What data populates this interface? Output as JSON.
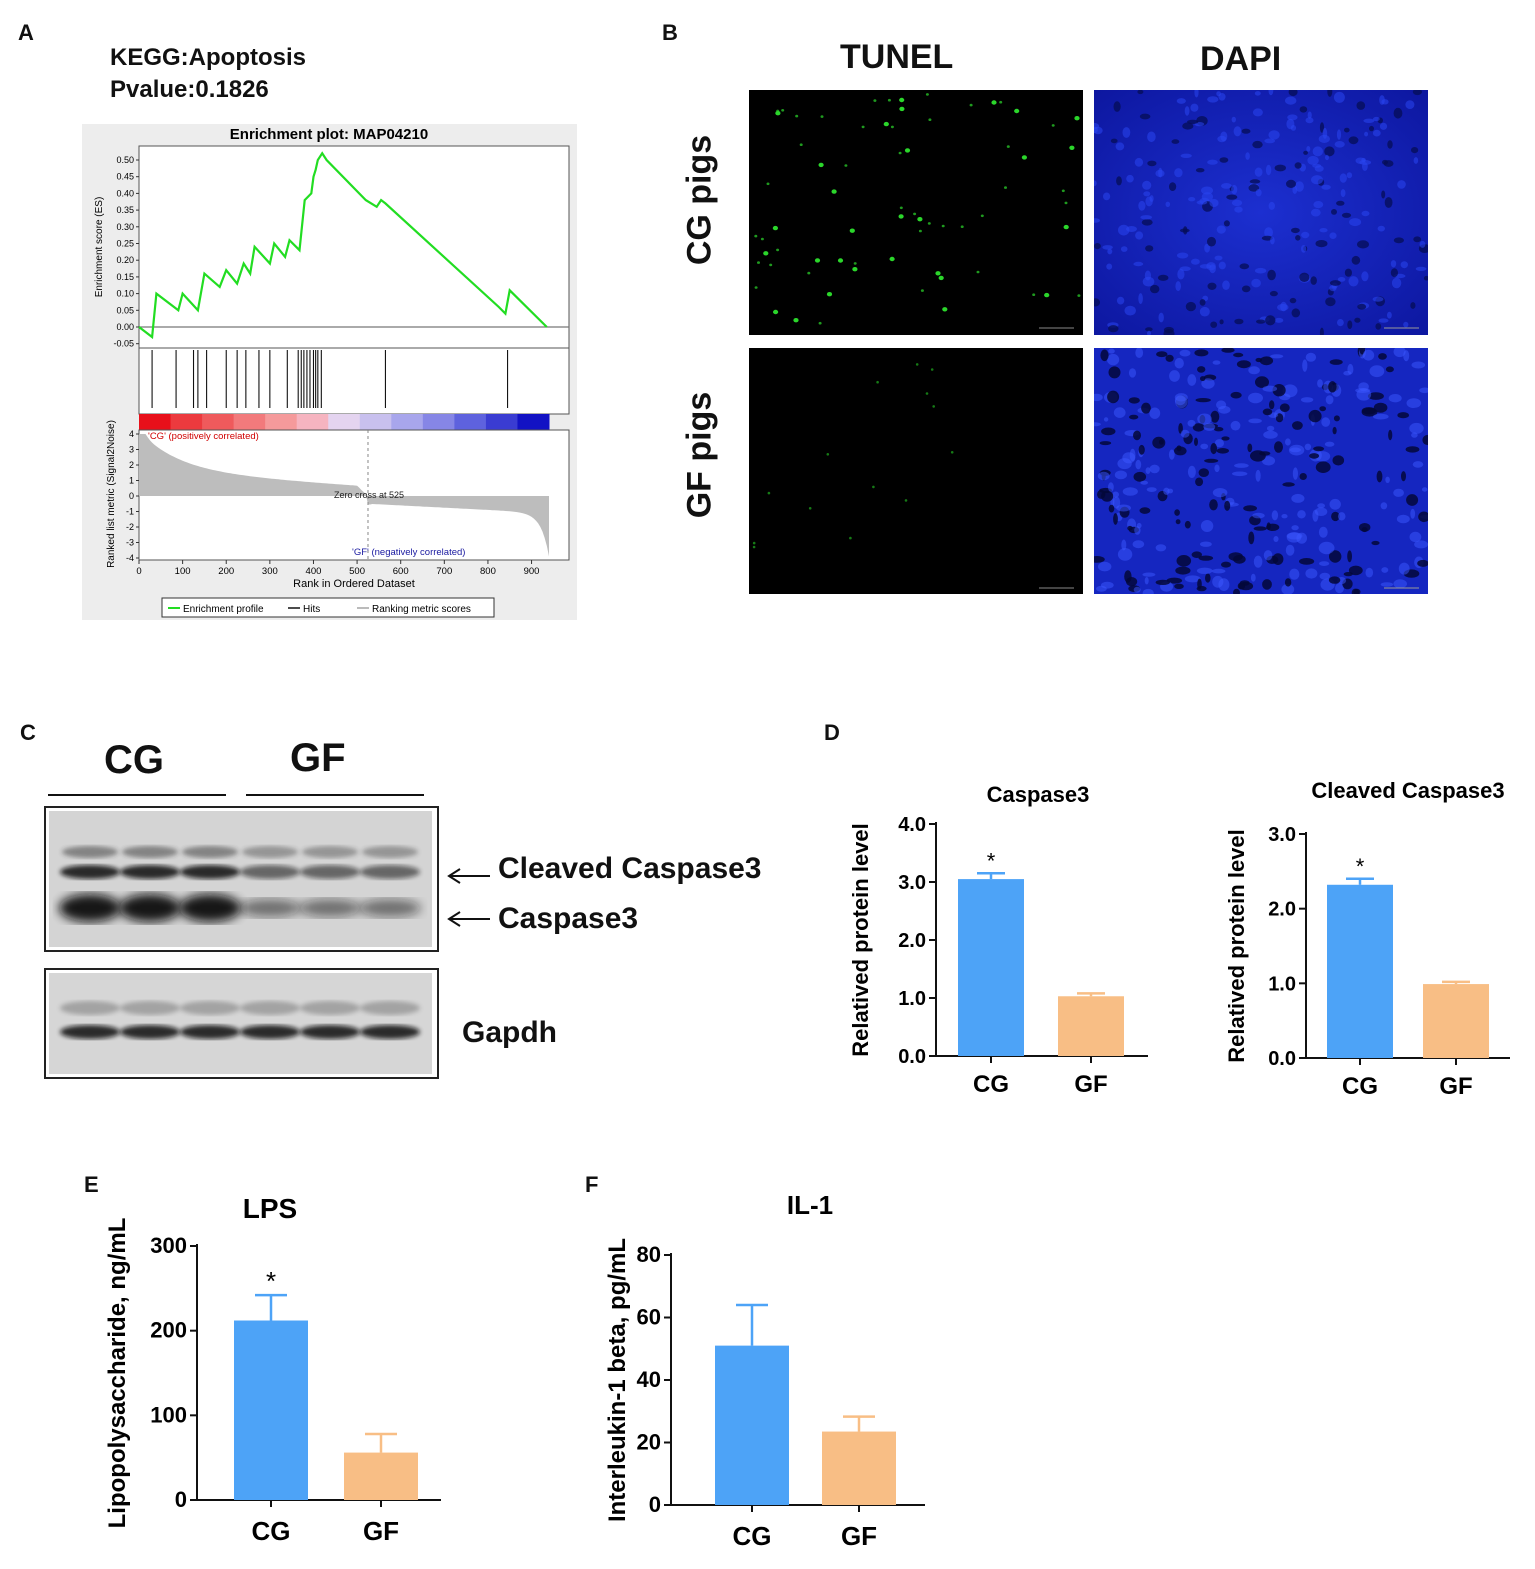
{
  "panels": {
    "A": "A",
    "B": "B",
    "C": "C",
    "D": "D",
    "E": "E",
    "F": "F"
  },
  "panelA": {
    "title_line1": "KEGG:Apoptosis",
    "title_line2": "Pvalue:0.1826",
    "plot_title": "Enrichment plot: MAP04210",
    "es_axis_label": "Enrichment score (ES)",
    "es_ticks": [
      "0.50",
      "0.45",
      "0.40",
      "0.35",
      "0.30",
      "0.25",
      "0.20",
      "0.15",
      "0.10",
      "0.05",
      "0.00",
      "-0.05"
    ],
    "metric_axis_label": "Ranked list metric (Signal2Noise)",
    "metric_ticks": [
      "4",
      "3",
      "2",
      "1",
      "0",
      "-1",
      "-2",
      "-3",
      "-4"
    ],
    "x_ticks": [
      "0",
      "100",
      "200",
      "300",
      "400",
      "500",
      "600",
      "700",
      "800",
      "900"
    ],
    "x_label": "Rank in Ordered Dataset",
    "pos_label": "'CG' (positively correlated)",
    "neg_label": "'GF' (negatively correlated)",
    "zero_cross": "Zero cross at 525",
    "legend": [
      "Enrichment profile",
      "Hits",
      "Ranking metric scores"
    ]
  },
  "panelB": {
    "col1": "TUNEL",
    "col2": "DAPI",
    "row1": "CG pigs",
    "row2": "GF pigs"
  },
  "panelC": {
    "group1": "CG",
    "group2": "GF",
    "label_cleaved": "Cleaved Caspase3",
    "label_caspase": "Caspase3",
    "label_gapdh": "Gapdh"
  },
  "colors": {
    "cg": "#4da3f7",
    "gf": "#f8be85",
    "es_line": "#00e000"
  },
  "chart_data": [
    {
      "type": "line",
      "id": "gsea",
      "title": "Enrichment plot: MAP04210",
      "xlabel": "Rank in Ordered Dataset",
      "ylabel": "Enrichment score (ES)",
      "xlim": [
        0,
        940
      ],
      "ylim": [
        -0.05,
        0.52
      ],
      "x": [
        0,
        30,
        40,
        90,
        100,
        135,
        150,
        185,
        200,
        225,
        240,
        255,
        265,
        300,
        310,
        335,
        345,
        368,
        380,
        395,
        400,
        405,
        410,
        420,
        430,
        520,
        545,
        555,
        565,
        825,
        840,
        850,
        935
      ],
      "y": [
        0,
        -0.03,
        0.1,
        0.05,
        0.1,
        0.05,
        0.16,
        0.12,
        0.17,
        0.13,
        0.19,
        0.16,
        0.24,
        0.19,
        0.25,
        0.21,
        0.26,
        0.23,
        0.38,
        0.4,
        0.45,
        0.47,
        0.5,
        0.52,
        0.5,
        0.38,
        0.36,
        0.38,
        0.37,
        0.06,
        0.04,
        0.11,
        0.0
      ],
      "hits": [
        30,
        85,
        125,
        135,
        155,
        200,
        225,
        245,
        275,
        300,
        340,
        365,
        372,
        378,
        385,
        392,
        400,
        405,
        410,
        418,
        565,
        845
      ],
      "zero_cross": 525
    },
    {
      "type": "bar",
      "id": "caspase3",
      "title": "Caspase3",
      "ylabel": "Relatived protein level",
      "categories": [
        "CG",
        "GF"
      ],
      "values": [
        3.05,
        1.03
      ],
      "errors": [
        0.1,
        0.05
      ],
      "sig": [
        "*",
        ""
      ],
      "ylim": [
        0,
        4.0
      ],
      "yticks": [
        "0.0",
        "1.0",
        "2.0",
        "3.0",
        "4.0"
      ]
    },
    {
      "type": "bar",
      "id": "cleaved",
      "title": "Cleaved Caspase3",
      "ylabel": "Relatived protein level",
      "categories": [
        "CG",
        "GF"
      ],
      "values": [
        2.32,
        0.99
      ],
      "errors": [
        0.08,
        0.03
      ],
      "sig": [
        "*",
        ""
      ],
      "ylim": [
        0,
        3.0
      ],
      "yticks": [
        "0.0",
        "1.0",
        "2.0",
        "3.0"
      ]
    },
    {
      "type": "bar",
      "id": "lps",
      "title": "LPS",
      "ylabel": "Lipopolysaccharide,  ng/mL",
      "categories": [
        "CG",
        "GF"
      ],
      "values": [
        212,
        56
      ],
      "errors": [
        30,
        22
      ],
      "sig": [
        "*",
        ""
      ],
      "ylim": [
        0,
        300
      ],
      "yticks": [
        "0",
        "100",
        "200",
        "300"
      ]
    },
    {
      "type": "bar",
      "id": "il1",
      "title": "IL-1",
      "ylabel": "Interleukin-1 beta,   pg/mL",
      "categories": [
        "CG",
        "GF"
      ],
      "values": [
        51,
        23.5
      ],
      "errors": [
        13,
        4.8
      ],
      "sig": [
        "",
        ""
      ],
      "ylim": [
        0,
        80
      ],
      "yticks": [
        "0",
        "20",
        "40",
        "60",
        "80"
      ]
    }
  ]
}
